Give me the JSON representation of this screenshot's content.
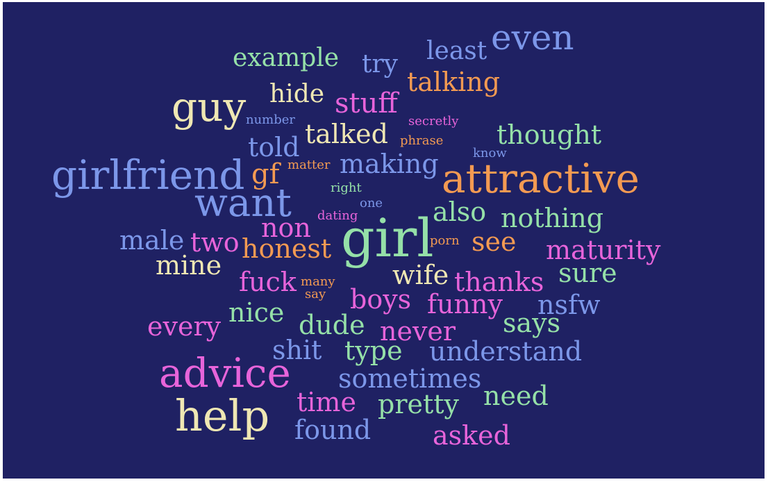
{
  "palette": {
    "background": "#1f2163",
    "green": "#95e0a8",
    "blue": "#7c97e9",
    "orange": "#f39a52",
    "pink": "#e764da",
    "cream": "#efe7b3"
  },
  "words": [
    {
      "text": "girl",
      "color": "green"
    },
    {
      "text": "girlfriend",
      "color": "blue"
    },
    {
      "text": "attractive",
      "color": "orange"
    },
    {
      "text": "advice",
      "color": "pink"
    },
    {
      "text": "help",
      "color": "cream"
    },
    {
      "text": "guy",
      "color": "cream"
    },
    {
      "text": "want",
      "color": "blue"
    },
    {
      "text": "even",
      "color": "blue"
    },
    {
      "text": "example",
      "color": "green"
    },
    {
      "text": "try",
      "color": "blue"
    },
    {
      "text": "least",
      "color": "blue"
    },
    {
      "text": "talking",
      "color": "orange"
    },
    {
      "text": "hide",
      "color": "cream"
    },
    {
      "text": "stuff",
      "color": "pink"
    },
    {
      "text": "number",
      "color": "blue"
    },
    {
      "text": "secretly",
      "color": "pink"
    },
    {
      "text": "talked",
      "color": "cream"
    },
    {
      "text": "thought",
      "color": "green"
    },
    {
      "text": "told",
      "color": "blue"
    },
    {
      "text": "phrase",
      "color": "orange"
    },
    {
      "text": "know",
      "color": "blue"
    },
    {
      "text": "gf",
      "color": "orange"
    },
    {
      "text": "matter",
      "color": "orange"
    },
    {
      "text": "making",
      "color": "blue"
    },
    {
      "text": "right",
      "color": "green"
    },
    {
      "text": "one",
      "color": "blue"
    },
    {
      "text": "dating",
      "color": "pink"
    },
    {
      "text": "also",
      "color": "green"
    },
    {
      "text": "nothing",
      "color": "green"
    },
    {
      "text": "non",
      "color": "pink"
    },
    {
      "text": "male",
      "color": "blue"
    },
    {
      "text": "two",
      "color": "pink"
    },
    {
      "text": "honest",
      "color": "orange"
    },
    {
      "text": "porn",
      "color": "orange"
    },
    {
      "text": "see",
      "color": "orange"
    },
    {
      "text": "maturity",
      "color": "pink"
    },
    {
      "text": "mine",
      "color": "cream"
    },
    {
      "text": "fuck",
      "color": "pink"
    },
    {
      "text": "many",
      "color": "orange"
    },
    {
      "text": "say",
      "color": "orange"
    },
    {
      "text": "wife",
      "color": "cream"
    },
    {
      "text": "thanks",
      "color": "pink"
    },
    {
      "text": "sure",
      "color": "green"
    },
    {
      "text": "boys",
      "color": "pink"
    },
    {
      "text": "funny",
      "color": "pink"
    },
    {
      "text": "nsfw",
      "color": "blue"
    },
    {
      "text": "nice",
      "color": "green"
    },
    {
      "text": "every",
      "color": "pink"
    },
    {
      "text": "dude",
      "color": "green"
    },
    {
      "text": "never",
      "color": "pink"
    },
    {
      "text": "says",
      "color": "green"
    },
    {
      "text": "shit",
      "color": "blue"
    },
    {
      "text": "type",
      "color": "green"
    },
    {
      "text": "understand",
      "color": "blue"
    },
    {
      "text": "sometimes",
      "color": "blue"
    },
    {
      "text": "time",
      "color": "pink"
    },
    {
      "text": "pretty",
      "color": "green"
    },
    {
      "text": "need",
      "color": "green"
    },
    {
      "text": "found",
      "color": "blue"
    },
    {
      "text": "asked",
      "color": "pink"
    }
  ]
}
